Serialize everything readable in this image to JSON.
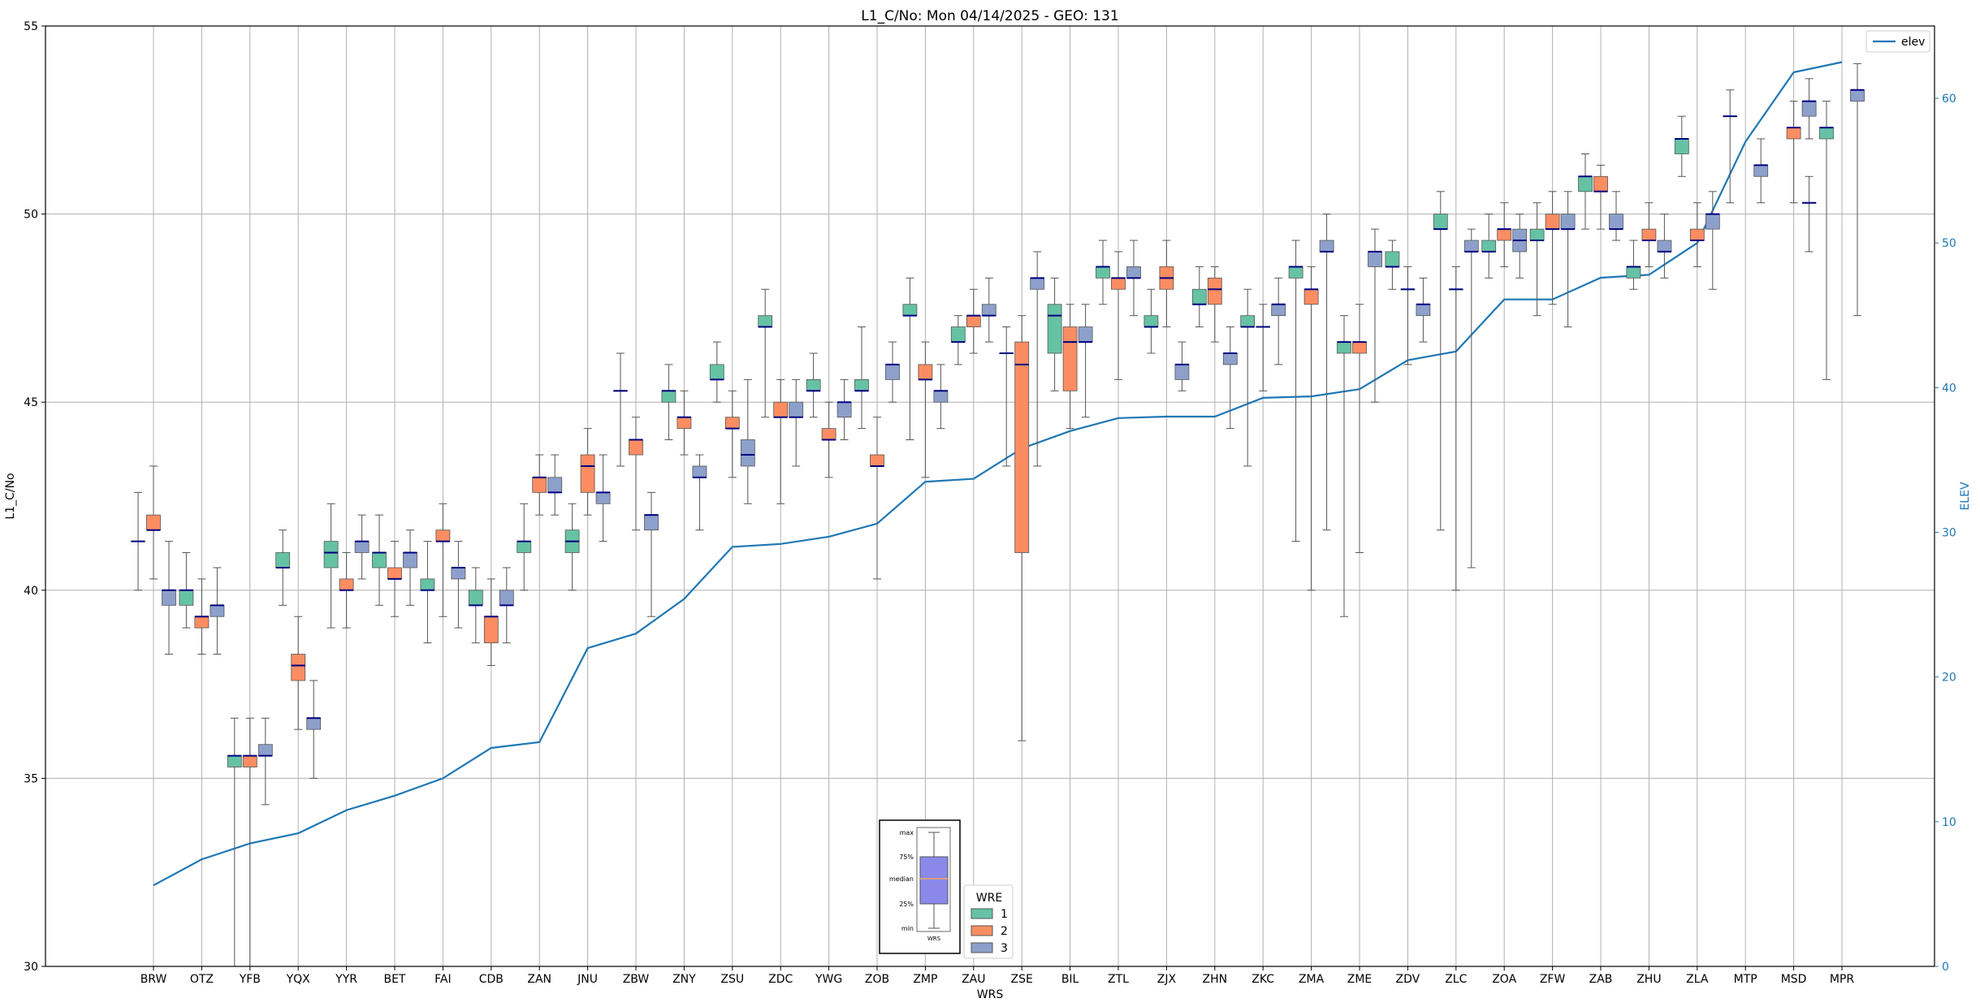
{
  "chart_data": {
    "type": "boxplot",
    "title": "L1_C/No: Mon 04/14/2025 - GEO: 131",
    "xlabel": "WRS",
    "ylabel": "L1_C/No",
    "y2label": "ELEV",
    "ylim": [
      30,
      55
    ],
    "y2lim": [
      0,
      65
    ],
    "yticks": [
      30,
      35,
      40,
      45,
      50,
      55
    ],
    "y2ticks": [
      0,
      10,
      20,
      30,
      40,
      50,
      60
    ],
    "grid": true,
    "categories": [
      "BRW",
      "OTZ",
      "YFB",
      "YQX",
      "YYR",
      "BET",
      "FAI",
      "CDB",
      "ZAN",
      "JNU",
      "ZBW",
      "ZNY",
      "ZSU",
      "ZDC",
      "YWG",
      "ZOB",
      "ZMP",
      "ZAU",
      "ZSE",
      "BIL",
      "ZTL",
      "ZJX",
      "ZHN",
      "ZKC",
      "ZMA",
      "ZME",
      "ZDV",
      "ZLC",
      "ZOA",
      "ZFW",
      "ZAB",
      "ZHU",
      "ZLA",
      "MTP",
      "MSD",
      "MPR"
    ],
    "colors": {
      "1": "#66c2a5",
      "2": "#fc8d62",
      "3": "#8da0cb",
      "elev": "#1f77b4",
      "median": "#000080"
    },
    "wre_legend": {
      "title": "WRE",
      "labels": [
        "1",
        "2",
        "3"
      ]
    },
    "elev_legend": {
      "label": "elev"
    },
    "key_box": {
      "labels": [
        "max",
        "75%",
        "median",
        "25%",
        "min"
      ],
      "xlabel": "WRS"
    },
    "boxes": [
      {
        "wrs": "BRW",
        "wre": 1,
        "min": 40.0,
        "q1": 41.3,
        "med": 41.3,
        "q3": 41.3,
        "max": 42.6
      },
      {
        "wrs": "BRW",
        "wre": 2,
        "min": 40.3,
        "q1": 41.6,
        "med": 41.6,
        "q3": 42.0,
        "max": 43.3
      },
      {
        "wrs": "BRW",
        "wre": 3,
        "min": 38.3,
        "q1": 39.6,
        "med": 40.0,
        "q3": 40.0,
        "max": 41.3
      },
      {
        "wrs": "OTZ",
        "wre": 1,
        "min": 39.0,
        "q1": 39.6,
        "med": 40.0,
        "q3": 40.0,
        "max": 41.0
      },
      {
        "wrs": "OTZ",
        "wre": 2,
        "min": 38.3,
        "q1": 39.0,
        "med": 39.3,
        "q3": 39.3,
        "max": 40.3
      },
      {
        "wrs": "OTZ",
        "wre": 3,
        "min": 38.3,
        "q1": 39.3,
        "med": 39.6,
        "q3": 39.6,
        "max": 40.6
      },
      {
        "wrs": "YFB",
        "wre": 1,
        "min": 30.0,
        "q1": 35.3,
        "med": 35.6,
        "q3": 35.6,
        "max": 36.6
      },
      {
        "wrs": "YFB",
        "wre": 2,
        "min": 30.0,
        "q1": 35.3,
        "med": 35.6,
        "q3": 35.6,
        "max": 36.6
      },
      {
        "wrs": "YFB",
        "wre": 3,
        "min": 34.3,
        "q1": 35.6,
        "med": 35.6,
        "q3": 35.9,
        "max": 36.6
      },
      {
        "wrs": "YQX",
        "wre": 1,
        "min": 39.6,
        "q1": 40.6,
        "med": 40.6,
        "q3": 41.0,
        "max": 41.6
      },
      {
        "wrs": "YQX",
        "wre": 2,
        "min": 36.3,
        "q1": 37.6,
        "med": 38.0,
        "q3": 38.3,
        "max": 39.3
      },
      {
        "wrs": "YQX",
        "wre": 3,
        "min": 35.0,
        "q1": 36.3,
        "med": 36.6,
        "q3": 36.6,
        "max": 37.6
      },
      {
        "wrs": "YYR",
        "wre": 1,
        "min": 39.0,
        "q1": 40.6,
        "med": 41.0,
        "q3": 41.3,
        "max": 42.3
      },
      {
        "wrs": "YYR",
        "wre": 2,
        "min": 39.0,
        "q1": 40.0,
        "med": 40.0,
        "q3": 40.3,
        "max": 41.0
      },
      {
        "wrs": "YYR",
        "wre": 3,
        "min": 40.3,
        "q1": 41.0,
        "med": 41.3,
        "q3": 41.3,
        "max": 42.0
      },
      {
        "wrs": "BET",
        "wre": 1,
        "min": 39.6,
        "q1": 40.6,
        "med": 41.0,
        "q3": 41.0,
        "max": 42.0
      },
      {
        "wrs": "BET",
        "wre": 2,
        "min": 39.3,
        "q1": 40.3,
        "med": 40.3,
        "q3": 40.6,
        "max": 41.3
      },
      {
        "wrs": "BET",
        "wre": 3,
        "min": 39.6,
        "q1": 40.6,
        "med": 41.0,
        "q3": 41.0,
        "max": 41.6
      },
      {
        "wrs": "FAI",
        "wre": 1,
        "min": 38.6,
        "q1": 40.0,
        "med": 40.0,
        "q3": 40.3,
        "max": 41.3
      },
      {
        "wrs": "FAI",
        "wre": 2,
        "min": 39.3,
        "q1": 41.3,
        "med": 41.3,
        "q3": 41.6,
        "max": 42.3
      },
      {
        "wrs": "FAI",
        "wre": 3,
        "min": 39.0,
        "q1": 40.3,
        "med": 40.6,
        "q3": 40.6,
        "max": 41.3
      },
      {
        "wrs": "CDB",
        "wre": 1,
        "min": 38.6,
        "q1": 39.6,
        "med": 39.6,
        "q3": 40.0,
        "max": 40.6
      },
      {
        "wrs": "CDB",
        "wre": 2,
        "min": 38.0,
        "q1": 38.6,
        "med": 39.3,
        "q3": 39.3,
        "max": 40.3
      },
      {
        "wrs": "CDB",
        "wre": 3,
        "min": 38.6,
        "q1": 39.6,
        "med": 39.6,
        "q3": 40.0,
        "max": 40.6
      },
      {
        "wrs": "ZAN",
        "wre": 1,
        "min": 40.0,
        "q1": 41.0,
        "med": 41.3,
        "q3": 41.3,
        "max": 42.3
      },
      {
        "wrs": "ZAN",
        "wre": 2,
        "min": 42.0,
        "q1": 42.6,
        "med": 43.0,
        "q3": 43.0,
        "max": 43.6
      },
      {
        "wrs": "ZAN",
        "wre": 3,
        "min": 42.0,
        "q1": 42.6,
        "med": 42.6,
        "q3": 43.0,
        "max": 43.6
      },
      {
        "wrs": "JNU",
        "wre": 1,
        "min": 40.0,
        "q1": 41.0,
        "med": 41.3,
        "q3": 41.6,
        "max": 42.3
      },
      {
        "wrs": "JNU",
        "wre": 2,
        "min": 42.0,
        "q1": 42.6,
        "med": 43.3,
        "q3": 43.6,
        "max": 44.3
      },
      {
        "wrs": "JNU",
        "wre": 3,
        "min": 41.3,
        "q1": 42.3,
        "med": 42.6,
        "q3": 42.6,
        "max": 43.6
      },
      {
        "wrs": "ZBW",
        "wre": 1,
        "min": 43.3,
        "q1": 45.3,
        "med": 45.3,
        "q3": 45.3,
        "max": 46.3
      },
      {
        "wrs": "ZBW",
        "wre": 2,
        "min": 41.6,
        "q1": 43.6,
        "med": 44.0,
        "q3": 44.0,
        "max": 44.6
      },
      {
        "wrs": "ZBW",
        "wre": 3,
        "min": 39.3,
        "q1": 41.6,
        "med": 42.0,
        "q3": 42.0,
        "max": 42.6
      },
      {
        "wrs": "ZNY",
        "wre": 1,
        "min": 44.0,
        "q1": 45.0,
        "med": 45.3,
        "q3": 45.3,
        "max": 46.0
      },
      {
        "wrs": "ZNY",
        "wre": 2,
        "min": 43.6,
        "q1": 44.3,
        "med": 44.6,
        "q3": 44.6,
        "max": 45.3
      },
      {
        "wrs": "ZNY",
        "wre": 3,
        "min": 41.6,
        "q1": 43.0,
        "med": 43.0,
        "q3": 43.3,
        "max": 43.6
      },
      {
        "wrs": "ZSU",
        "wre": 1,
        "min": 45.0,
        "q1": 45.6,
        "med": 45.6,
        "q3": 46.0,
        "max": 46.6
      },
      {
        "wrs": "ZSU",
        "wre": 2,
        "min": 43.0,
        "q1": 44.3,
        "med": 44.3,
        "q3": 44.6,
        "max": 45.3
      },
      {
        "wrs": "ZSU",
        "wre": 3,
        "min": 42.3,
        "q1": 43.3,
        "med": 43.6,
        "q3": 44.0,
        "max": 45.6
      },
      {
        "wrs": "ZDC",
        "wre": 1,
        "min": 44.6,
        "q1": 47.0,
        "med": 47.0,
        "q3": 47.3,
        "max": 48.0
      },
      {
        "wrs": "ZDC",
        "wre": 2,
        "min": 42.3,
        "q1": 44.6,
        "med": 44.6,
        "q3": 45.0,
        "max": 45.6
      },
      {
        "wrs": "ZDC",
        "wre": 3,
        "min": 43.3,
        "q1": 44.6,
        "med": 44.6,
        "q3": 45.0,
        "max": 45.6
      },
      {
        "wrs": "YWG",
        "wre": 1,
        "min": 44.6,
        "q1": 45.3,
        "med": 45.3,
        "q3": 45.6,
        "max": 46.3
      },
      {
        "wrs": "YWG",
        "wre": 2,
        "min": 43.0,
        "q1": 44.0,
        "med": 44.0,
        "q3": 44.3,
        "max": 45.0
      },
      {
        "wrs": "YWG",
        "wre": 3,
        "min": 44.0,
        "q1": 44.6,
        "med": 45.0,
        "q3": 45.0,
        "max": 45.6
      },
      {
        "wrs": "ZOB",
        "wre": 1,
        "min": 44.3,
        "q1": 45.3,
        "med": 45.3,
        "q3": 45.6,
        "max": 47.0
      },
      {
        "wrs": "ZOB",
        "wre": 2,
        "min": 40.3,
        "q1": 43.3,
        "med": 43.3,
        "q3": 43.6,
        "max": 44.6
      },
      {
        "wrs": "ZOB",
        "wre": 3,
        "min": 45.0,
        "q1": 45.6,
        "med": 46.0,
        "q3": 46.0,
        "max": 46.6
      },
      {
        "wrs": "ZMP",
        "wre": 1,
        "min": 44.0,
        "q1": 47.3,
        "med": 47.3,
        "q3": 47.6,
        "max": 48.3
      },
      {
        "wrs": "ZMP",
        "wre": 2,
        "min": 43.0,
        "q1": 45.6,
        "med": 45.6,
        "q3": 46.0,
        "max": 46.6
      },
      {
        "wrs": "ZMP",
        "wre": 3,
        "min": 44.3,
        "q1": 45.0,
        "med": 45.3,
        "q3": 45.3,
        "max": 46.0
      },
      {
        "wrs": "ZAU",
        "wre": 1,
        "min": 46.0,
        "q1": 46.6,
        "med": 46.6,
        "q3": 47.0,
        "max": 47.3
      },
      {
        "wrs": "ZAU",
        "wre": 2,
        "min": 46.3,
        "q1": 47.0,
        "med": 47.3,
        "q3": 47.3,
        "max": 48.0
      },
      {
        "wrs": "ZAU",
        "wre": 3,
        "min": 46.6,
        "q1": 47.3,
        "med": 47.3,
        "q3": 47.6,
        "max": 48.3
      },
      {
        "wrs": "ZSE",
        "wre": 1,
        "min": 43.3,
        "q1": 46.3,
        "med": 46.3,
        "q3": 46.3,
        "max": 47.0
      },
      {
        "wrs": "ZSE",
        "wre": 2,
        "min": 36.0,
        "q1": 41.0,
        "med": 46.0,
        "q3": 46.6,
        "max": 47.3
      },
      {
        "wrs": "ZSE",
        "wre": 3,
        "min": 43.3,
        "q1": 48.0,
        "med": 48.3,
        "q3": 48.3,
        "max": 49.0
      },
      {
        "wrs": "BIL",
        "wre": 1,
        "min": 45.3,
        "q1": 46.3,
        "med": 47.3,
        "q3": 47.6,
        "max": 48.3
      },
      {
        "wrs": "BIL",
        "wre": 2,
        "min": 44.3,
        "q1": 45.3,
        "med": 46.6,
        "q3": 47.0,
        "max": 47.6
      },
      {
        "wrs": "BIL",
        "wre": 3,
        "min": 44.6,
        "q1": 46.6,
        "med": 46.6,
        "q3": 47.0,
        "max": 47.6
      },
      {
        "wrs": "ZTL",
        "wre": 1,
        "min": 47.6,
        "q1": 48.3,
        "med": 48.6,
        "q3": 48.6,
        "max": 49.3
      },
      {
        "wrs": "ZTL",
        "wre": 2,
        "min": 45.6,
        "q1": 48.0,
        "med": 48.3,
        "q3": 48.3,
        "max": 49.0
      },
      {
        "wrs": "ZTL",
        "wre": 3,
        "min": 47.3,
        "q1": 48.3,
        "med": 48.3,
        "q3": 48.6,
        "max": 49.3
      },
      {
        "wrs": "ZJX",
        "wre": 1,
        "min": 46.3,
        "q1": 47.0,
        "med": 47.0,
        "q3": 47.3,
        "max": 48.0
      },
      {
        "wrs": "ZJX",
        "wre": 2,
        "min": 47.0,
        "q1": 48.0,
        "med": 48.3,
        "q3": 48.6,
        "max": 49.3
      },
      {
        "wrs": "ZJX",
        "wre": 3,
        "min": 45.3,
        "q1": 45.6,
        "med": 46.0,
        "q3": 46.0,
        "max": 46.6
      },
      {
        "wrs": "ZHN",
        "wre": 1,
        "min": 47.0,
        "q1": 47.6,
        "med": 47.6,
        "q3": 48.0,
        "max": 48.6
      },
      {
        "wrs": "ZHN",
        "wre": 2,
        "min": 46.6,
        "q1": 47.6,
        "med": 48.0,
        "q3": 48.3,
        "max": 48.6
      },
      {
        "wrs": "ZHN",
        "wre": 3,
        "min": 44.3,
        "q1": 46.0,
        "med": 46.3,
        "q3": 46.3,
        "max": 47.0
      },
      {
        "wrs": "ZKC",
        "wre": 1,
        "min": 43.3,
        "q1": 47.0,
        "med": 47.0,
        "q3": 47.3,
        "max": 48.0
      },
      {
        "wrs": "ZKC",
        "wre": 2,
        "min": 45.3,
        "q1": 47.0,
        "med": 47.0,
        "q3": 47.0,
        "max": 47.6
      },
      {
        "wrs": "ZKC",
        "wre": 3,
        "min": 46.0,
        "q1": 47.3,
        "med": 47.6,
        "q3": 47.6,
        "max": 48.3
      },
      {
        "wrs": "ZMA",
        "wre": 1,
        "min": 41.3,
        "q1": 48.3,
        "med": 48.6,
        "q3": 48.6,
        "max": 49.3
      },
      {
        "wrs": "ZMA",
        "wre": 2,
        "min": 40.0,
        "q1": 47.6,
        "med": 48.0,
        "q3": 48.0,
        "max": 48.6
      },
      {
        "wrs": "ZMA",
        "wre": 3,
        "min": 41.6,
        "q1": 49.0,
        "med": 49.0,
        "q3": 49.3,
        "max": 50.0
      },
      {
        "wrs": "ZME",
        "wre": 1,
        "min": 39.3,
        "q1": 46.3,
        "med": 46.6,
        "q3": 46.6,
        "max": 47.3
      },
      {
        "wrs": "ZME",
        "wre": 2,
        "min": 41.0,
        "q1": 46.3,
        "med": 46.6,
        "q3": 46.6,
        "max": 47.6
      },
      {
        "wrs": "ZME",
        "wre": 3,
        "min": 45.0,
        "q1": 48.6,
        "med": 49.0,
        "q3": 49.0,
        "max": 49.6
      },
      {
        "wrs": "ZDV",
        "wre": 1,
        "min": 48.0,
        "q1": 48.6,
        "med": 48.6,
        "q3": 49.0,
        "max": 49.3
      },
      {
        "wrs": "ZDV",
        "wre": 2,
        "min": 46.0,
        "q1": 48.0,
        "med": 48.0,
        "q3": 48.0,
        "max": 48.6
      },
      {
        "wrs": "ZDV",
        "wre": 3,
        "min": 46.6,
        "q1": 47.3,
        "med": 47.6,
        "q3": 47.6,
        "max": 48.3
      },
      {
        "wrs": "ZLC",
        "wre": 1,
        "min": 41.6,
        "q1": 49.6,
        "med": 49.6,
        "q3": 50.0,
        "max": 50.6
      },
      {
        "wrs": "ZLC",
        "wre": 2,
        "min": 40.0,
        "q1": 48.0,
        "med": 48.0,
        "q3": 48.0,
        "max": 48.6
      },
      {
        "wrs": "ZLC",
        "wre": 3,
        "min": 40.6,
        "q1": 49.0,
        "med": 49.0,
        "q3": 49.3,
        "max": 49.6
      },
      {
        "wrs": "ZOA",
        "wre": 1,
        "min": 48.3,
        "q1": 49.0,
        "med": 49.0,
        "q3": 49.3,
        "max": 50.0
      },
      {
        "wrs": "ZOA",
        "wre": 2,
        "min": 48.6,
        "q1": 49.3,
        "med": 49.6,
        "q3": 49.6,
        "max": 50.3
      },
      {
        "wrs": "ZOA",
        "wre": 3,
        "min": 48.3,
        "q1": 49.0,
        "med": 49.3,
        "q3": 49.6,
        "max": 50.0
      },
      {
        "wrs": "ZFW",
        "wre": 1,
        "min": 47.3,
        "q1": 49.3,
        "med": 49.3,
        "q3": 49.6,
        "max": 50.3
      },
      {
        "wrs": "ZFW",
        "wre": 2,
        "min": 47.6,
        "q1": 49.6,
        "med": 49.6,
        "q3": 50.0,
        "max": 50.6
      },
      {
        "wrs": "ZFW",
        "wre": 3,
        "min": 47.0,
        "q1": 49.6,
        "med": 49.6,
        "q3": 50.0,
        "max": 50.6
      },
      {
        "wrs": "ZAB",
        "wre": 1,
        "min": 49.6,
        "q1": 50.6,
        "med": 51.0,
        "q3": 51.0,
        "max": 51.6
      },
      {
        "wrs": "ZAB",
        "wre": 2,
        "min": 49.6,
        "q1": 50.6,
        "med": 50.6,
        "q3": 51.0,
        "max": 51.3
      },
      {
        "wrs": "ZAB",
        "wre": 3,
        "min": 49.3,
        "q1": 49.6,
        "med": 49.6,
        "q3": 50.0,
        "max": 50.6
      },
      {
        "wrs": "ZHU",
        "wre": 1,
        "min": 48.0,
        "q1": 48.3,
        "med": 48.6,
        "q3": 48.6,
        "max": 49.3
      },
      {
        "wrs": "ZHU",
        "wre": 2,
        "min": 48.6,
        "q1": 49.3,
        "med": 49.3,
        "q3": 49.6,
        "max": 50.3
      },
      {
        "wrs": "ZHU",
        "wre": 3,
        "min": 48.3,
        "q1": 49.0,
        "med": 49.0,
        "q3": 49.3,
        "max": 50.0
      },
      {
        "wrs": "ZLA",
        "wre": 1,
        "min": 51.0,
        "q1": 51.6,
        "med": 52.0,
        "q3": 52.0,
        "max": 52.6
      },
      {
        "wrs": "ZLA",
        "wre": 2,
        "min": 48.6,
        "q1": 49.3,
        "med": 49.3,
        "q3": 49.6,
        "max": 50.3
      },
      {
        "wrs": "ZLA",
        "wre": 3,
        "min": 48.0,
        "q1": 49.6,
        "med": 50.0,
        "q3": 50.0,
        "max": 50.6
      },
      {
        "wrs": "MTP",
        "wre": 1,
        "min": 50.3,
        "q1": 52.6,
        "med": 52.6,
        "q3": 52.6,
        "max": 53.3
      },
      {
        "wrs": "MTP",
        "wre": 3,
        "min": 50.3,
        "q1": 51.0,
        "med": 51.3,
        "q3": 51.3,
        "max": 52.0
      },
      {
        "wrs": "MSD",
        "wre": 2,
        "min": 50.3,
        "q1": 52.0,
        "med": 52.3,
        "q3": 52.3,
        "max": 53.0
      },
      {
        "wrs": "MSD",
        "wre": 3,
        "min": 49.0,
        "q1": 50.3,
        "med": 50.3,
        "q3": 50.3,
        "max": 51.0
      },
      {
        "wrs": "MSD",
        "wre": 3,
        "min": 52.0,
        "q1": 52.6,
        "med": 53.0,
        "q3": 53.0,
        "max": 53.6
      },
      {
        "wrs": "MPR",
        "wre": 1,
        "min": 45.6,
        "q1": 52.0,
        "med": 52.3,
        "q3": 52.3,
        "max": 53.0
      },
      {
        "wrs": "MPR",
        "wre": 3,
        "min": 47.3,
        "q1": 53.0,
        "med": 53.3,
        "q3": 53.3,
        "max": 54.0
      }
    ],
    "elev": {
      "label": "elev",
      "values": [
        5.6,
        7.4,
        8.5,
        9.2,
        10.8,
        11.8,
        13.0,
        15.1,
        15.5,
        22.0,
        23.0,
        25.4,
        29.0,
        29.2,
        29.7,
        30.6,
        33.5,
        33.7,
        35.8,
        37.0,
        37.9,
        38.0,
        38.0,
        39.3,
        39.4,
        39.9,
        41.9,
        42.5,
        46.1,
        46.1,
        47.6,
        47.8,
        50.0,
        57.0,
        61.8,
        62.5
      ]
    }
  }
}
